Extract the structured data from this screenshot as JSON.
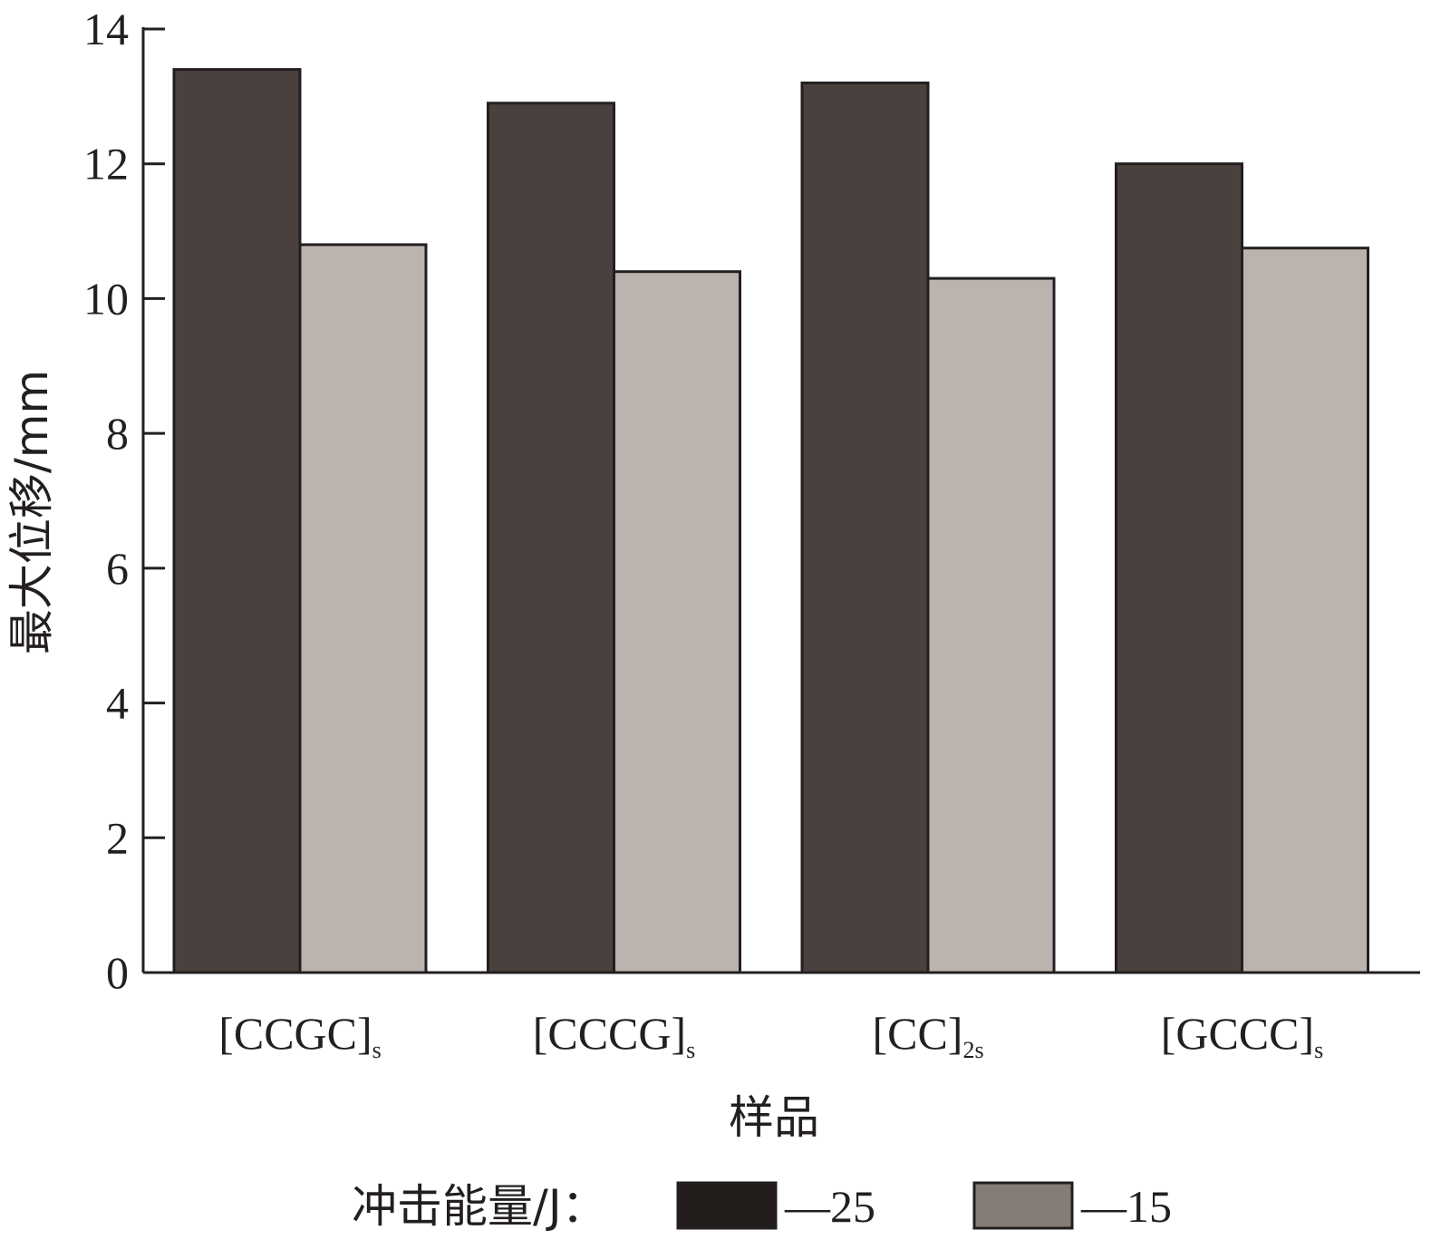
{
  "chart_data": {
    "type": "bar",
    "categories": [
      {
        "main": "[CCGC]",
        "sub": "s"
      },
      {
        "main": "[CCCG]",
        "sub": "s"
      },
      {
        "main": "[CC]",
        "sub": "2s"
      },
      {
        "main": "[GCCC]",
        "sub": "s"
      }
    ],
    "series": [
      {
        "name": "25",
        "values": [
          13.4,
          12.9,
          13.2,
          12.0
        ],
        "color": "#4a403d"
      },
      {
        "name": "15",
        "values": [
          10.8,
          10.4,
          10.3,
          10.75
        ],
        "color": "#bbb3ae"
      }
    ],
    "legend_swatch_colors": [
      "#221c1b",
      "#857b77"
    ],
    "xlabel": "样品",
    "ylabel": "最大位移/mm",
    "ylim": [
      0,
      14
    ],
    "yticks": [
      0,
      2,
      4,
      6,
      8,
      10,
      12,
      14
    ],
    "grid": false,
    "legend": {
      "title": "冲击能量/J：",
      "placement": "bottom",
      "entries": [
        "—25",
        "—15"
      ]
    }
  }
}
